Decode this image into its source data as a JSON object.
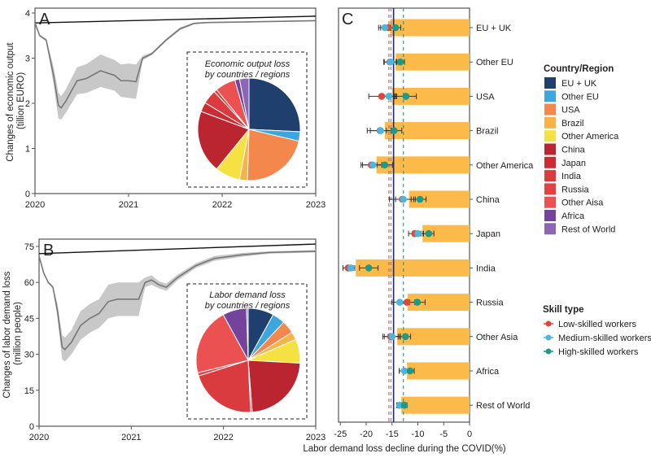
{
  "chart_data": [
    {
      "panel": "A",
      "type": "line",
      "ylabel": "Changes of economic output\n(tillion EURO)",
      "xlabel": "",
      "xlim": [
        2020,
        2023
      ],
      "ylim": [
        0,
        4
      ],
      "xticks": [
        "2020",
        "2021",
        "2022",
        "2023"
      ],
      "yticks": [
        "0",
        "1",
        "2",
        "3",
        "4"
      ],
      "series": [
        {
          "name": "baseline",
          "color": "#111111",
          "x": [
            2020,
            2023
          ],
          "y": [
            3.78,
            3.93
          ]
        },
        {
          "name": "covid-scenario",
          "color": "#777777",
          "x": [
            2020,
            2020.05,
            2020.12,
            2020.2,
            2020.25,
            2020.28,
            2020.33,
            2020.45,
            2020.55,
            2020.7,
            2020.85,
            2020.92,
            2021.0,
            2021.08,
            2021.15,
            2021.25,
            2021.4,
            2021.55,
            2021.7,
            2021.85,
            2022.2,
            2023
          ],
          "y": [
            3.78,
            3.5,
            3.4,
            2.6,
            1.95,
            1.9,
            2.05,
            2.5,
            2.55,
            2.72,
            2.62,
            2.5,
            2.5,
            2.48,
            3.0,
            3.1,
            3.4,
            3.65,
            3.77,
            3.79,
            3.8,
            3.83
          ],
          "band": [
            0,
            0.02,
            0.03,
            0.2,
            0.28,
            0.26,
            0.26,
            0.3,
            0.32,
            0.36,
            0.34,
            0.36,
            0.38,
            0.38,
            0.05,
            0.03,
            0.03,
            0.03,
            0.02,
            0.01,
            0.01,
            0.01
          ]
        }
      ],
      "inset_pie": {
        "title": "Economic output loss\nby countries / regions",
        "labels": [
          "EU + UK",
          "Other EU",
          "USA",
          "Brazil",
          "Other America",
          "China",
          "Japan",
          "India",
          "Russia",
          "Other Aisa",
          "Africa",
          "Rest of World"
        ],
        "values": [
          26,
          3,
          22,
          2.5,
          8,
          20,
          3,
          4.5,
          1,
          6.5,
          1.5,
          3
        ]
      }
    },
    {
      "panel": "B",
      "type": "line",
      "ylabel": "Changes of labor demand loss\n(million people)",
      "xlabel": "",
      "xlim": [
        2020,
        2023
      ],
      "ylim": [
        0,
        80
      ],
      "xticks": [
        "2020",
        "2021",
        "2022",
        "2023"
      ],
      "yticks": [
        "0",
        "15",
        "30",
        "45",
        "60",
        "75"
      ],
      "series": [
        {
          "name": "baseline",
          "color": "#111111",
          "x": [
            2020,
            2023
          ],
          "y": [
            72,
            76
          ]
        },
        {
          "name": "covid-scenario",
          "color": "#777777",
          "x": [
            2020,
            2020.05,
            2020.1,
            2020.15,
            2020.2,
            2020.25,
            2020.28,
            2020.35,
            2020.45,
            2020.55,
            2020.65,
            2020.75,
            2020.85,
            2020.95,
            2021.08,
            2021.15,
            2021.22,
            2021.3,
            2021.38,
            2021.5,
            2021.7,
            2021.9,
            2022.2,
            2022.5,
            2023
          ],
          "y": [
            71,
            64,
            60,
            58,
            48,
            33,
            32,
            35,
            42,
            45,
            47,
            52,
            53,
            53,
            53,
            60,
            61,
            59,
            58,
            62,
            67,
            70,
            71.5,
            72.5,
            73
          ],
          "band": [
            0,
            0.5,
            0.5,
            0.5,
            3,
            5,
            5,
            5,
            6,
            6,
            6,
            7,
            7,
            7,
            7,
            2,
            2,
            1.5,
            1.5,
            1.2,
            1,
            1,
            0.8,
            0.5,
            0.5
          ]
        }
      ],
      "inset_pie": {
        "title": "Labor demand loss\nby countries / regions",
        "labels": [
          "EU + UK",
          "Other EU",
          "USA",
          "Brazil",
          "Other America",
          "China",
          "Japan",
          "India",
          "Russia",
          "Other Aisa",
          "Africa",
          "Rest of World"
        ],
        "values": [
          8,
          4,
          4,
          2.5,
          7.5,
          23,
          0.5,
          21,
          1,
          21,
          7.5,
          0.5
        ]
      }
    },
    {
      "panel": "C",
      "type": "bar",
      "orientation": "horizontal",
      "xlabel": "Labor demand loss decline during the COVID(%)",
      "xlim": [
        -25.5,
        0
      ],
      "xticks": [
        "-25",
        "-20",
        "-15",
        "-10",
        "-5",
        "0"
      ],
      "categories": [
        "EU + UK",
        "Other EU",
        "USA",
        "Brazil",
        "Other America",
        "China",
        "Japan",
        "India",
        "Russia",
        "Other Asia",
        "Africa",
        "Rest of World"
      ],
      "bar_values": [
        -15.4,
        -14.3,
        -15,
        -16.4,
        -18,
        -11.7,
        -9.1,
        -22,
        -12,
        -14,
        -12.1,
        -13.2
      ],
      "bar_color": "#FBBA4A",
      "reference_lines": [
        {
          "name": "overall-mean",
          "value": -14.7,
          "style": "solid",
          "color": "#1F2A7A"
        },
        {
          "name": "low-skilled-mean",
          "value": -15.6,
          "style": "dashed",
          "color": "#C9655A"
        },
        {
          "name": "medium-skilled-mean",
          "value": -15.2,
          "style": "dashed",
          "color": "#8A8AAA"
        },
        {
          "name": "high-skilled-mean",
          "value": -12.8,
          "style": "dashed",
          "color": "#2E9A8C"
        }
      ],
      "series": [
        {
          "name": "Low-skilled workers",
          "color": "#E0463A",
          "values": [
            -15.7,
            -15.4,
            -17,
            -17.3,
            -19,
            -13,
            -10.6,
            -23.5,
            -12.1,
            -15.3,
            -12.6,
            -13.5
          ],
          "err": [
            1.5,
            1.2,
            2.5,
            2.5,
            2,
            2.5,
            1.2,
            1,
            1.5,
            1.5,
            1,
            0.6
          ]
        },
        {
          "name": "Medium-skilled workers",
          "color": "#4BB7DE",
          "values": [
            -16.4,
            -15.3,
            -15.6,
            -17.2,
            -18.7,
            -12.8,
            -10,
            -23,
            -13.5,
            -15,
            -12.6,
            -13.5
          ],
          "err": [
            1.2,
            1.2,
            1.5,
            2,
            2,
            1.5,
            1,
            0.8,
            1.5,
            1.5,
            1,
            0.5
          ]
        },
        {
          "name": "High-skilled workers",
          "color": "#1E9A86",
          "values": [
            -14.3,
            -13.4,
            -12.3,
            -14.6,
            -16.4,
            -9.6,
            -7.9,
            -19.5,
            -10.1,
            -12.4,
            -11.5,
            -12.6
          ],
          "err": [
            1,
            0.8,
            2,
            1.5,
            1.5,
            1.2,
            1,
            1.8,
            1.5,
            1,
            0.8,
            0.5
          ]
        }
      ]
    }
  ],
  "legend_region": {
    "title": "Country/Region",
    "items": [
      {
        "label": "EU + UK",
        "color": "#1F3F6E"
      },
      {
        "label": "Other EU",
        "color": "#3EA6DE"
      },
      {
        "label": "USA",
        "color": "#F4874B"
      },
      {
        "label": "Brazil",
        "color": "#F8B24A"
      },
      {
        "label": "Other America",
        "color": "#F5E142"
      },
      {
        "label": "China",
        "color": "#BA2530"
      },
      {
        "label": "Japan",
        "color": "#C92C33"
      },
      {
        "label": "India",
        "color": "#D93B3E"
      },
      {
        "label": "Russia",
        "color": "#E3413F"
      },
      {
        "label": "Other Aisa",
        "color": "#EC5152"
      },
      {
        "label": "Africa",
        "color": "#74439C"
      },
      {
        "label": "Rest of World",
        "color": "#8A66B4"
      }
    ]
  },
  "legend_skill": {
    "title": "Skill type",
    "items": [
      {
        "label": "Low-skilled workers",
        "color": "#E0463A"
      },
      {
        "label": "Medium-skilled workers",
        "color": "#4BB7DE"
      },
      {
        "label": "High-skilled workers",
        "color": "#1E9A86"
      }
    ]
  }
}
